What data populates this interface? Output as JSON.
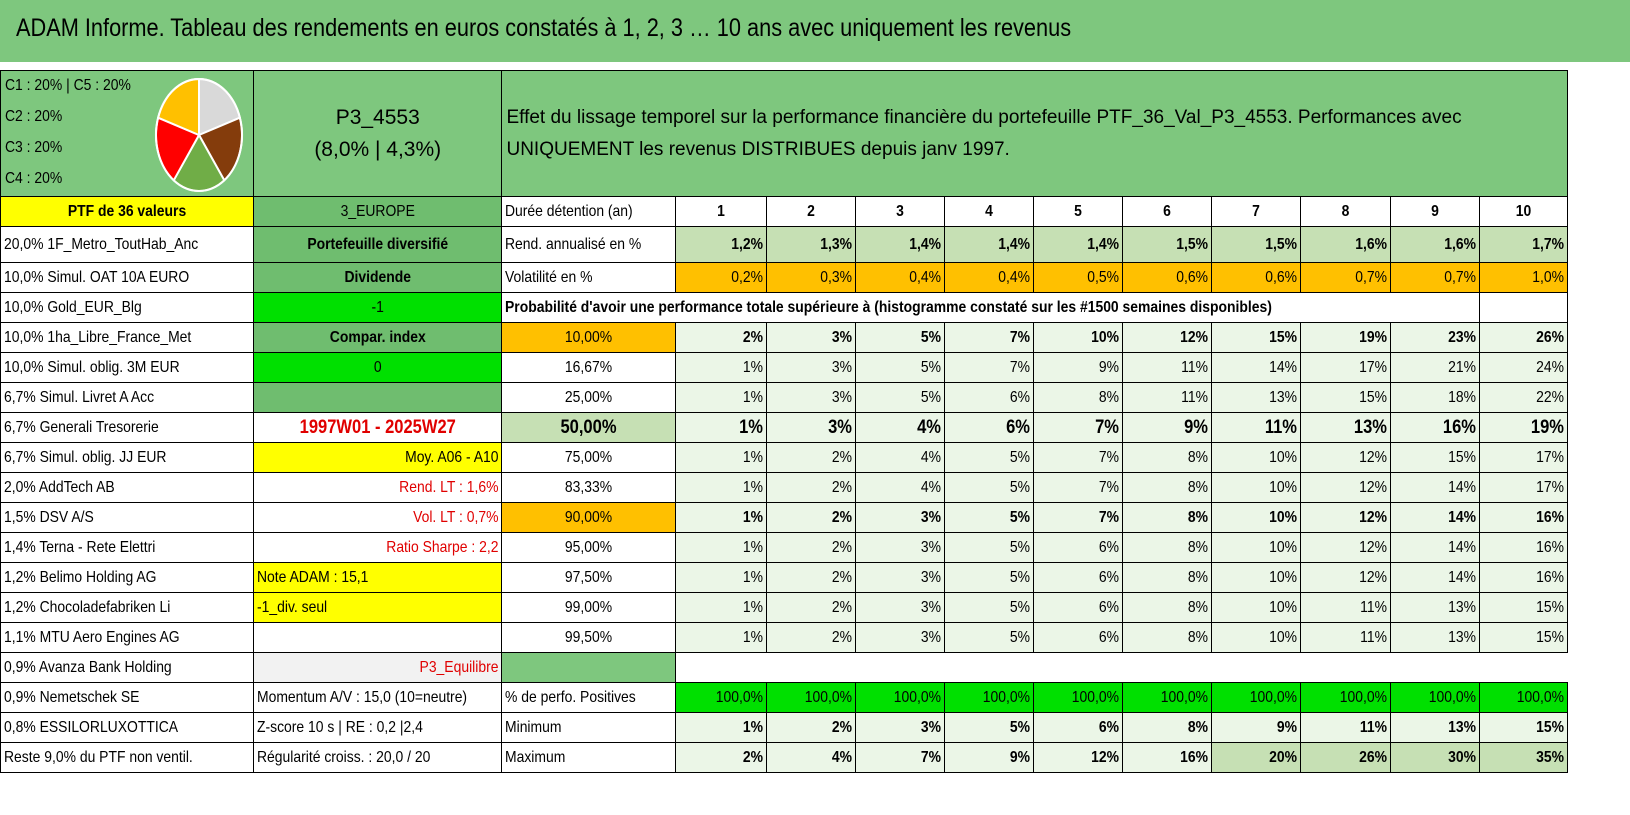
{
  "title": "ADAM Informe. Tableau des rendements en euros constatés à 1, 2, 3 … 10 ans avec uniquement les revenus",
  "allocation": [
    "C1 : 20% | C5 : 20%",
    "C2 : 20%",
    "C3 : 20%",
    "C4 : 20%"
  ],
  "pie": {
    "slices": [
      {
        "name": "C1",
        "value": 20,
        "color": "#d9d9d9"
      },
      {
        "name": "C2",
        "value": 20,
        "color": "#843c0c"
      },
      {
        "name": "C3",
        "value": 20,
        "color": "#70ad47"
      },
      {
        "name": "C4",
        "value": 20,
        "color": "#ff0000"
      },
      {
        "name": "C5",
        "value": 20,
        "color": "#ffc000"
      }
    ]
  },
  "portfolio": {
    "code": "P3_4553",
    "perf": "(8,0% | 4,3%)"
  },
  "description": "Effet du lissage temporel sur la performance financière du portefeuille PTF_36_Val_P3_4553. Performances avec UNIQUEMENT les revenus DISTRIBUES depuis janv 1997.",
  "ptf_label": "PTF de 36 valeurs",
  "region": "3_EUROPE",
  "holding_label": "Durée détention (an)",
  "years": [
    "1",
    "2",
    "3",
    "4",
    "5",
    "6",
    "7",
    "8",
    "9",
    "10"
  ],
  "rend_label": "Rend. annualisé en %",
  "rend": [
    "1,2%",
    "1,3%",
    "1,4%",
    "1,4%",
    "1,4%",
    "1,5%",
    "1,5%",
    "1,6%",
    "1,6%",
    "1,7%"
  ],
  "vol_label": "Volatilité en %",
  "vol": [
    "0,2%",
    "0,3%",
    "0,4%",
    "0,4%",
    "0,5%",
    "0,6%",
    "0,6%",
    "0,7%",
    "0,7%",
    "1,0%"
  ],
  "prob_label": "Probabilité d'avoir une performance totale supérieure à (histogramme constaté sur les #1500 semaines disponibles)",
  "holdings": [
    "20,0% 1F_Metro_ToutHab_Anc",
    "10,0% Simul. OAT 10A EURO",
    "10,0% Gold_EUR_Blg",
    "10,0% 1ha_Libre_France_Met",
    "10,0% Simul. oblig. 3M EUR",
    "6,7% Simul. Livret A Acc",
    "6,7% Generali Tresorerie",
    "6,7% Simul. oblig. JJ EUR",
    "2,0% AddTech AB",
    "1,5% DSV A/S",
    "1,4% Terna - Rete Elettri",
    "1,2% Belimo Holding AG",
    "1,2% Chocoladefabriken Li",
    "1,1% MTU Aero Engines AG",
    "0,9% Avanza Bank Holding",
    "0,9% Nemetschek SE",
    "0,8% ESSILORLUXOTTICA",
    "Reste 9,0% du PTF non ventil."
  ],
  "side": {
    "diversified": "Portefeuille diversifié",
    "dividend": "Dividende",
    "minus_one": "-1",
    "compar": "Compar. index",
    "zero": "0",
    "period": "1997W01 - 2025W27",
    "moy": "Moy. A06 - A10",
    "rend_lt": "Rend. LT : 1,6%",
    "vol_lt": "Vol. LT : 0,7%",
    "sharpe": "Ratio Sharpe : 2,2",
    "note": "Note ADAM : 15,1",
    "div_seul": "-1_div. seul",
    "equilibre": "P3_Equilibre",
    "momentum": "Momentum A/V : 15,0 (10=neutre)",
    "zscore": "Z-score 10 s | RE : 0,2 |2,4",
    "regularite": "Régularité croiss. : 20,0 / 20"
  },
  "prob_rows": [
    {
      "threshold": "10,00%",
      "values": [
        "2%",
        "3%",
        "5%",
        "7%",
        "10%",
        "12%",
        "15%",
        "19%",
        "23%",
        "26%"
      ]
    },
    {
      "threshold": "16,67%",
      "values": [
        "1%",
        "3%",
        "5%",
        "7%",
        "9%",
        "11%",
        "14%",
        "17%",
        "21%",
        "24%"
      ]
    },
    {
      "threshold": "25,00%",
      "values": [
        "1%",
        "3%",
        "5%",
        "6%",
        "8%",
        "11%",
        "13%",
        "15%",
        "18%",
        "22%"
      ]
    },
    {
      "threshold": "50,00%",
      "values": [
        "1%",
        "3%",
        "4%",
        "6%",
        "7%",
        "9%",
        "11%",
        "13%",
        "16%",
        "19%"
      ]
    },
    {
      "threshold": "75,00%",
      "values": [
        "1%",
        "2%",
        "4%",
        "5%",
        "7%",
        "8%",
        "10%",
        "12%",
        "15%",
        "17%"
      ]
    },
    {
      "threshold": "83,33%",
      "values": [
        "1%",
        "2%",
        "4%",
        "5%",
        "7%",
        "8%",
        "10%",
        "12%",
        "14%",
        "17%"
      ]
    },
    {
      "threshold": "90,00%",
      "values": [
        "1%",
        "2%",
        "3%",
        "5%",
        "7%",
        "8%",
        "10%",
        "12%",
        "14%",
        "16%"
      ]
    },
    {
      "threshold": "95,00%",
      "values": [
        "1%",
        "2%",
        "3%",
        "5%",
        "6%",
        "8%",
        "10%",
        "12%",
        "14%",
        "16%"
      ]
    },
    {
      "threshold": "97,50%",
      "values": [
        "1%",
        "2%",
        "3%",
        "5%",
        "6%",
        "8%",
        "10%",
        "12%",
        "14%",
        "16%"
      ]
    },
    {
      "threshold": "99,00%",
      "values": [
        "1%",
        "2%",
        "3%",
        "5%",
        "6%",
        "8%",
        "10%",
        "11%",
        "13%",
        "15%"
      ]
    },
    {
      "threshold": "99,50%",
      "values": [
        "1%",
        "2%",
        "3%",
        "5%",
        "6%",
        "8%",
        "10%",
        "11%",
        "13%",
        "15%"
      ]
    }
  ],
  "pos_label": "% de perfo. Positives",
  "pos": [
    "100,0%",
    "100,0%",
    "100,0%",
    "100,0%",
    "100,0%",
    "100,0%",
    "100,0%",
    "100,0%",
    "100,0%",
    "100,0%"
  ],
  "min_label": "Minimum",
  "min": [
    "1%",
    "2%",
    "3%",
    "5%",
    "6%",
    "8%",
    "9%",
    "11%",
    "13%",
    "15%"
  ],
  "max_label": "Maximum",
  "max": [
    "2%",
    "4%",
    "7%",
    "9%",
    "12%",
    "16%",
    "20%",
    "26%",
    "30%",
    "35%"
  ]
}
